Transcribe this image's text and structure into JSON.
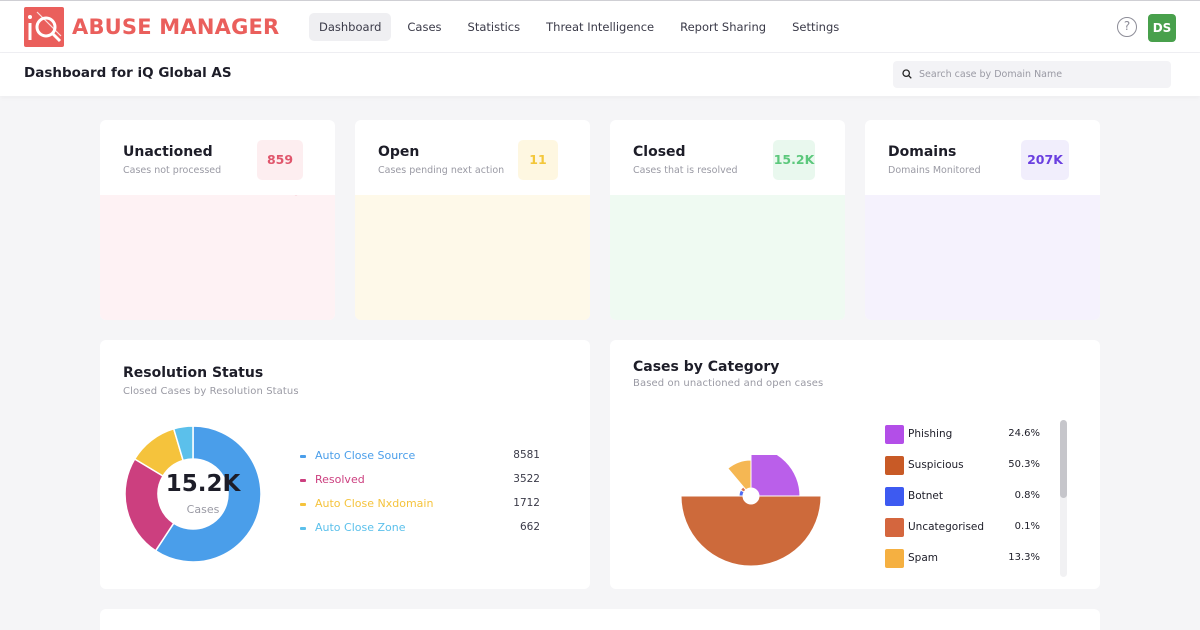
{
  "app": {
    "name": "ABUSE MANAGER",
    "brand_color": "#ea5f5c"
  },
  "nav": {
    "items": [
      {
        "label": "Dashboard",
        "active": true
      },
      {
        "label": "Cases",
        "active": false
      },
      {
        "label": "Statistics",
        "active": false
      },
      {
        "label": "Threat Intelligence",
        "active": false
      },
      {
        "label": "Report Sharing",
        "active": false
      },
      {
        "label": "Settings",
        "active": false
      }
    ]
  },
  "header": {
    "help_icon": "help-icon",
    "help_glyph": "?",
    "avatar_initials": "DS",
    "avatar_color": "#48a04c"
  },
  "subheader": {
    "title": "Dashboard for iQ Global AS",
    "search_placeholder": "Search case by Domain Name"
  },
  "stats": [
    {
      "title": "Unactioned",
      "subtitle": "Cases not processed",
      "value": "859",
      "color": "#e0566c",
      "badge_bg": "#fdeef0"
    },
    {
      "title": "Open",
      "subtitle": "Cases pending next action",
      "value": "11",
      "color": "#f3c73a",
      "badge_bg": "#fef7e1"
    },
    {
      "title": "Closed",
      "subtitle": "Cases that is resolved",
      "value": "15.2K",
      "color": "#5cc87c",
      "badge_bg": "#e9f8ee"
    },
    {
      "title": "Domains",
      "subtitle": "Domains Monitored",
      "value": "207K",
      "color": "#6a3fe0",
      "badge_bg": "#f1eefc"
    }
  ],
  "resolution": {
    "title": "Resolution Status",
    "subtitle": "Closed Cases by Resolution Status",
    "center_value": "15.2K",
    "center_label": "Cases",
    "items": [
      {
        "label": "Auto Close Source",
        "value": 8581,
        "color": "#4a9eea"
      },
      {
        "label": "Resolved",
        "value": 3522,
        "color": "#cc3f7f"
      },
      {
        "label": "Auto Close Nxdomain",
        "value": 1712,
        "color": "#f5c33c"
      },
      {
        "label": "Auto Close Zone",
        "value": 662,
        "color": "#5bc0eb"
      }
    ]
  },
  "categories": {
    "title": "Cases by Category",
    "subtitle": "Based on unactioned and open cases",
    "items": [
      {
        "label": "Phishing",
        "percent": "24.6%",
        "value": 24.6,
        "color": "#b34ee8"
      },
      {
        "label": "Suspicious",
        "percent": "50.3%",
        "value": 50.3,
        "color": "#c85a26"
      },
      {
        "label": "Botnet",
        "percent": "0.8%",
        "value": 0.8,
        "color": "#3d5af1"
      },
      {
        "label": "Uncategorised",
        "percent": "0.1%",
        "value": 0.1,
        "color": "#d4663e"
      },
      {
        "label": "Spam",
        "percent": "13.3%",
        "value": 13.3,
        "color": "#f5b041"
      }
    ]
  }
}
